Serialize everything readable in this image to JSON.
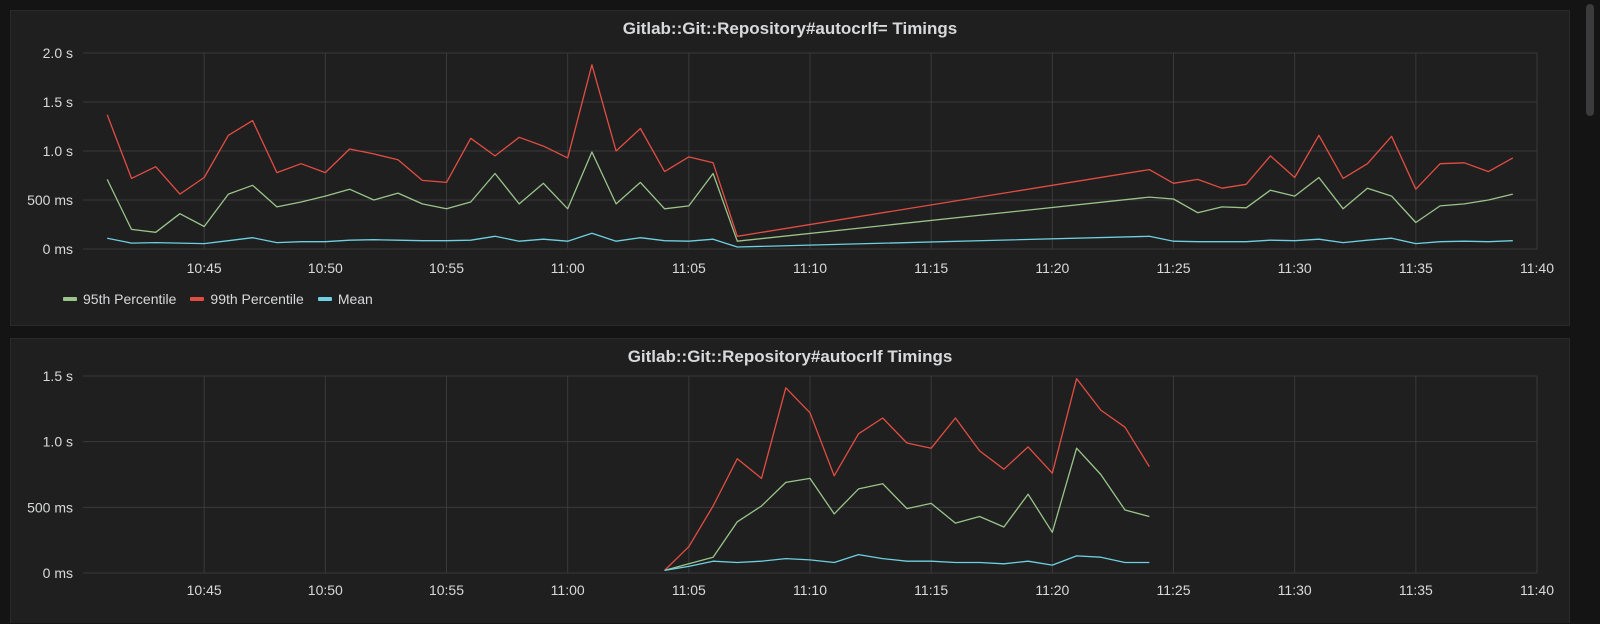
{
  "colors": {
    "p95": "#9ac48a",
    "p99": "#e24d42",
    "mean": "#6ed0e0",
    "grid": "#3a3a3c",
    "text": "#d8d9da"
  },
  "x_ticks": [
    "10:45",
    "10:50",
    "10:55",
    "11:00",
    "11:05",
    "11:10",
    "11:15",
    "11:20",
    "11:25",
    "11:30",
    "11:35",
    "11:40"
  ],
  "legend": [
    {
      "key": "p95",
      "label": "95th Percentile"
    },
    {
      "key": "p99",
      "label": "99th Percentile"
    },
    {
      "key": "mean",
      "label": "Mean"
    }
  ],
  "chart_data": [
    {
      "type": "line",
      "title": "Gitlab::Git::Repository#autocrlf= Timings",
      "x_unit": "minutes after 10:40",
      "xlim": [
        0,
        60
      ],
      "ylim": [
        0,
        2000
      ],
      "y_ticks": [
        {
          "v": 0,
          "label": "0 ms"
        },
        {
          "v": 500,
          "label": "500 ms"
        },
        {
          "v": 1000,
          "label": "1.0 s"
        },
        {
          "v": 1500,
          "label": "1.5 s"
        },
        {
          "v": 2000,
          "label": "2.0 s"
        }
      ],
      "grid": true,
      "legend_position": "bottom-left",
      "x": [
        1,
        2,
        3,
        4,
        5,
        6,
        7,
        8,
        9,
        10,
        11,
        12,
        13,
        14,
        15,
        16,
        17,
        18,
        19,
        20,
        21,
        22,
        23,
        24,
        25,
        26,
        27,
        44,
        45,
        46,
        47,
        48,
        49,
        50,
        51,
        52,
        53,
        54,
        55,
        56,
        57,
        58,
        59
      ],
      "series": [
        {
          "key": "p99",
          "name": "99th Percentile",
          "values": [
            1370,
            720,
            840,
            560,
            730,
            1160,
            1310,
            780,
            870,
            780,
            1020,
            970,
            910,
            700,
            680,
            1130,
            950,
            1140,
            1050,
            930,
            1880,
            1000,
            1230,
            790,
            940,
            880,
            130,
            810,
            670,
            710,
            620,
            660,
            950,
            730,
            1160,
            720,
            870,
            1150,
            610,
            870,
            880,
            790,
            930
          ]
        },
        {
          "key": "p95",
          "name": "95th Percentile",
          "values": [
            710,
            200,
            170,
            360,
            230,
            560,
            650,
            430,
            480,
            540,
            610,
            500,
            570,
            460,
            410,
            480,
            770,
            460,
            670,
            410,
            990,
            460,
            680,
            410,
            440,
            770,
            80,
            530,
            510,
            370,
            430,
            420,
            600,
            540,
            730,
            410,
            620,
            540,
            270,
            440,
            460,
            500,
            560
          ]
        },
        {
          "key": "mean",
          "name": "Mean",
          "values": [
            110,
            60,
            65,
            60,
            55,
            85,
            115,
            65,
            75,
            75,
            90,
            95,
            90,
            85,
            85,
            90,
            130,
            80,
            100,
            80,
            160,
            80,
            115,
            85,
            80,
            100,
            20,
            130,
            80,
            75,
            75,
            75,
            90,
            85,
            100,
            65,
            90,
            110,
            55,
            75,
            80,
            75,
            85
          ]
        }
      ]
    },
    {
      "type": "line",
      "title": "Gitlab::Git::Repository#autocrlf Timings",
      "x_unit": "minutes after 10:40",
      "xlim": [
        0,
        60
      ],
      "ylim": [
        0,
        1500
      ],
      "y_ticks": [
        {
          "v": 0,
          "label": "0 ms"
        },
        {
          "v": 500,
          "label": "500 ms"
        },
        {
          "v": 1000,
          "label": "1.0 s"
        },
        {
          "v": 1500,
          "label": "1.5 s"
        }
      ],
      "grid": true,
      "x": [
        24,
        25,
        26,
        27,
        28,
        29,
        30,
        31,
        32,
        33,
        34,
        35,
        36,
        37,
        38,
        39,
        40,
        41,
        42,
        43,
        44
      ],
      "series": [
        {
          "key": "p99",
          "name": "99th Percentile",
          "values": [
            20,
            200,
            510,
            870,
            720,
            1410,
            1220,
            740,
            1060,
            1180,
            990,
            950,
            1180,
            930,
            790,
            960,
            760,
            1480,
            1240,
            1110,
            810
          ]
        },
        {
          "key": "p95",
          "name": "95th Percentile",
          "values": [
            20,
            70,
            120,
            390,
            510,
            690,
            720,
            450,
            640,
            680,
            490,
            530,
            380,
            430,
            350,
            600,
            310,
            950,
            750,
            480,
            430
          ]
        },
        {
          "key": "mean",
          "name": "Mean",
          "values": [
            20,
            50,
            90,
            80,
            90,
            110,
            100,
            80,
            140,
            110,
            90,
            90,
            80,
            80,
            70,
            90,
            60,
            130,
            120,
            80,
            80
          ]
        }
      ]
    }
  ]
}
